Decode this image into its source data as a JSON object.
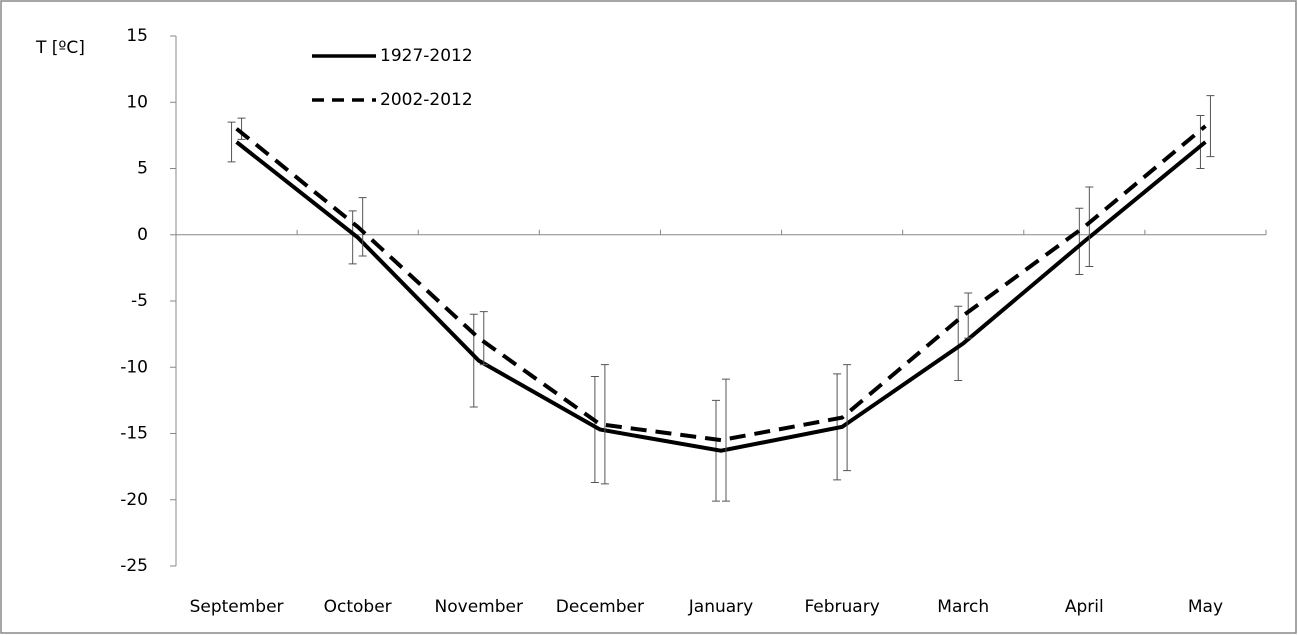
{
  "chart_data": {
    "type": "line",
    "y_label": "T [ºC]",
    "categories": [
      "September",
      "October",
      "November",
      "December",
      "January",
      "February",
      "March",
      "April",
      "May"
    ],
    "series": [
      {
        "name": "1927-2012",
        "color": "#000000",
        "line_style": "solid",
        "values": [
          7.0,
          -0.2,
          -9.5,
          -14.7,
          -16.3,
          -14.5,
          -8.2,
          -0.5,
          7.0
        ],
        "errors": [
          1.5,
          2.0,
          3.5,
          4.0,
          3.8,
          4.0,
          2.8,
          2.5,
          2.0
        ]
      },
      {
        "name": "2002-2012",
        "color": "#000000",
        "line_style": "dashed",
        "values": [
          8.0,
          0.6,
          -7.8,
          -14.3,
          -15.5,
          -13.8,
          -6.1,
          0.6,
          8.2
        ],
        "errors": [
          0.8,
          2.2,
          2.0,
          4.5,
          4.6,
          4.0,
          1.7,
          3.0,
          2.3
        ]
      }
    ],
    "ylim": [
      -25,
      15
    ],
    "yticks": [
      -25,
      -20,
      -15,
      -10,
      -5,
      0,
      5,
      10,
      15
    ],
    "grid": false,
    "legend": "top-left"
  }
}
